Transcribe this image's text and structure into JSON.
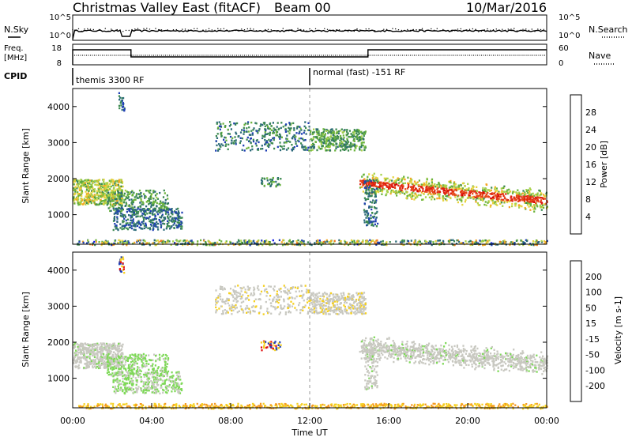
{
  "header": {
    "station": "Christmas Valley East (fitACF)",
    "beam": "Beam 00",
    "date": "10/Mar/2016"
  },
  "strip_labels": {
    "nsky": "N.Sky",
    "nsearch": "N.Search",
    "freq": "Freq.",
    "freq_unit": "[MHz]",
    "nave": "Nave",
    "cpid": "CPID"
  },
  "strip_ticks": {
    "noise_left": [
      "10^5",
      "10^0"
    ],
    "noise_right": [
      "10^5",
      "10^0"
    ],
    "freq_left": [
      "18",
      "8"
    ],
    "nave_right": [
      "60",
      "0"
    ]
  },
  "cpid_segments": [
    {
      "start_hour": 0,
      "label": "themis 3300 RF"
    },
    {
      "start_hour": 12,
      "label": "normal (fast) -151 RF"
    }
  ],
  "chart_data": [
    {
      "type": "heatmap",
      "title": "",
      "xlabel": "",
      "ylabel": "Slant Range [km]",
      "xlim_hours": [
        0,
        24
      ],
      "ylim_km": [
        180,
        4500
      ],
      "y_ticks": [
        1000,
        2000,
        3000,
        4000
      ],
      "colorbar": {
        "label": "Power [dB]",
        "range": [
          0,
          32
        ],
        "ticks": [
          "4",
          "8",
          "12",
          "16",
          "20",
          "24",
          "28"
        ],
        "colors": [
          "#0a14e6",
          "#1f3fb4",
          "#2b6a78",
          "#3c8a50",
          "#6bb33c",
          "#a8d24a",
          "#e6d23c",
          "#f5a623",
          "#f07820",
          "#e64a19",
          "#e02010",
          "#d40000"
        ]
      }
    },
    {
      "type": "heatmap",
      "title": "",
      "xlabel": "Time UT",
      "ylabel": "Slant Range [km]",
      "xlim_hours": [
        0,
        24
      ],
      "ylim_km": [
        180,
        4500
      ],
      "y_ticks": [
        1000,
        2000,
        3000,
        4000
      ],
      "x_ticks": [
        "00:00",
        "04:00",
        "08:00",
        "12:00",
        "16:00",
        "20:00",
        "00:00"
      ],
      "colorbar": {
        "label": "Velocity [m s-1]",
        "range": [
          -250,
          250
        ],
        "ticks": [
          "200",
          "100",
          "50",
          "15",
          "-15",
          "-50",
          "-100",
          "-200"
        ],
        "colors": [
          "#1f3fb4",
          "#2d6e3c",
          "#3c9a3c",
          "#7ed957",
          "#c8c8c0",
          "#f5d020",
          "#f59a20",
          "#f05a10",
          "#e01010"
        ]
      }
    }
  ]
}
